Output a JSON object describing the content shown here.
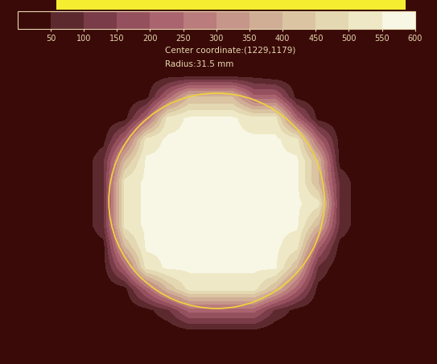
{
  "chart_data": {
    "type": "heatmap",
    "annotations": [
      "Center coordinate:(1229,1179)",
      "Radius:31.5 mm"
    ],
    "tick_labels": false,
    "colors": [
      "#3a0a08",
      "#5c2a2e",
      "#7a3c48",
      "#95505e",
      "#aa6470",
      "#ba7c7c",
      "#c6968a",
      "#d0ae96",
      "#dac4a2",
      "#e4d8b2",
      "#eee8c6",
      "#f8f6e4"
    ],
    "colorbar_range": [
      0,
      600
    ],
    "colorbar_ticks": [
      50,
      100,
      150,
      200,
      250,
      300,
      350,
      400,
      450,
      500,
      550,
      600
    ],
    "cells": [
      [
        10,
        10,
        10,
        10,
        10,
        10,
        10,
        10,
        10,
        10,
        10,
        10,
        10,
        10,
        10,
        10,
        10,
        10,
        10,
        10
      ],
      [
        10,
        10,
        10,
        10,
        10,
        10,
        10,
        30,
        30,
        30,
        30,
        30,
        10,
        10,
        10,
        10,
        10,
        10,
        10,
        10
      ],
      [
        10,
        10,
        10,
        10,
        10,
        10,
        30,
        220,
        400,
        400,
        400,
        220,
        220,
        30,
        10,
        10,
        10,
        10,
        10,
        10
      ],
      [
        10,
        10,
        10,
        10,
        10,
        30,
        220,
        520,
        560,
        560,
        560,
        520,
        520,
        220,
        30,
        10,
        10,
        10,
        10,
        10
      ],
      [
        10,
        10,
        10,
        10,
        30,
        220,
        520,
        560,
        560,
        560,
        560,
        560,
        560,
        520,
        220,
        30,
        10,
        10,
        10,
        10
      ],
      [
        10,
        10,
        10,
        10,
        90,
        400,
        560,
        560,
        560,
        560,
        560,
        560,
        560,
        560,
        400,
        30,
        10,
        10,
        10,
        10
      ],
      [
        10,
        10,
        10,
        10,
        90,
        520,
        560,
        560,
        560,
        560,
        560,
        560,
        560,
        560,
        400,
        90,
        10,
        10,
        10,
        10
      ],
      [
        10,
        10,
        10,
        10,
        90,
        520,
        560,
        560,
        560,
        560,
        560,
        560,
        560,
        560,
        520,
        90,
        10,
        10,
        10,
        10
      ],
      [
        10,
        10,
        10,
        10,
        90,
        520,
        560,
        560,
        560,
        560,
        560,
        560,
        560,
        560,
        400,
        90,
        10,
        10,
        10,
        10
      ],
      [
        10,
        10,
        10,
        10,
        30,
        400,
        560,
        560,
        560,
        560,
        560,
        560,
        560,
        520,
        220,
        30,
        10,
        10,
        10,
        10
      ],
      [
        10,
        10,
        10,
        10,
        30,
        220,
        520,
        560,
        560,
        560,
        560,
        560,
        560,
        400,
        90,
        10,
        10,
        10,
        10,
        10
      ],
      [
        10,
        10,
        10,
        10,
        10,
        30,
        220,
        400,
        520,
        520,
        520,
        520,
        400,
        220,
        30,
        10,
        10,
        10,
        10,
        10
      ],
      [
        10,
        10,
        10,
        10,
        10,
        10,
        30,
        90,
        220,
        220,
        220,
        220,
        90,
        30,
        10,
        10,
        10,
        10,
        10,
        10
      ],
      [
        10,
        10,
        10,
        10,
        10,
        10,
        10,
        10,
        30,
        30,
        30,
        30,
        10,
        10,
        10,
        10,
        10,
        10,
        10,
        10
      ],
      [
        10,
        10,
        10,
        10,
        10,
        10,
        10,
        10,
        10,
        10,
        10,
        10,
        10,
        10,
        10,
        10,
        10,
        10,
        10,
        10
      ]
    ]
  }
}
